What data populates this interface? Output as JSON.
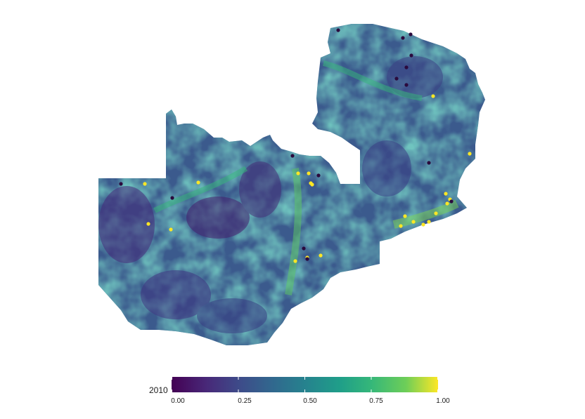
{
  "legend": {
    "title": "2010",
    "colormap": "viridis",
    "ticks": [
      {
        "value": 0.0,
        "label": "0.00"
      },
      {
        "value": 0.25,
        "label": "0.25"
      },
      {
        "value": 0.5,
        "label": "0.50"
      },
      {
        "value": 0.75,
        "label": "0.75"
      },
      {
        "value": 1.0,
        "label": "1.00"
      }
    ],
    "colors": [
      "#440154",
      "#3b528b",
      "#21918c",
      "#5ec962",
      "#fde725"
    ]
  },
  "map": {
    "region": "Zambia",
    "layer": "raster heatmap",
    "background": "#ffffff",
    "point_colors": {
      "high": "#fde725",
      "low": "#2b0a3d"
    }
  }
}
